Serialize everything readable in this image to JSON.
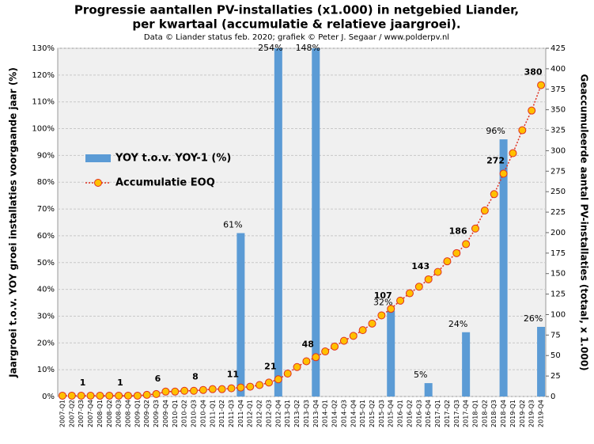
{
  "chart_data": {
    "type": "bar",
    "title": [
      "Progressie aantallen PV-installaties  (x1.000) in netgebied Liander,",
      "per kwartaal (accumulatie  & relatieve jaargroei)."
    ],
    "subtitle": "Data © Liander status feb. 2020; grafiek © Peter J. Segaar / www.polderpv.nl",
    "y_label": "Jaargroei t.o.v. YOY groei installaties voorgaande jaar (%)",
    "y2_label": "Geaccumuleerde aantal PV-installaties  (totaal, x 1.000)",
    "categories": [
      "2007-Q1",
      "2007-Q2",
      "2007-Q3",
      "2007-Q4",
      "2008-Q1",
      "2008-Q2",
      "2008-Q3",
      "2008-Q4",
      "2009-Q1",
      "2009-Q2",
      "2009-Q3",
      "2009-Q4",
      "2010-Q1",
      "2010-Q2",
      "2010-Q3",
      "2010-Q4",
      "2011-Q1",
      "2011-Q2",
      "2011-Q3",
      "2011-Q4",
      "2012-Q1",
      "2012-Q2",
      "2012-Q3",
      "2012-Q4",
      "2013-Q1",
      "2013-Q2",
      "2013-Q3",
      "2013-Q4",
      "2014-Q1",
      "2014-Q2",
      "2014-Q3",
      "2014-Q4",
      "2015-Q1",
      "2015-Q2",
      "2015-Q3",
      "2015-Q4",
      "2016-Q1",
      "2016-Q2",
      "2016-Q3",
      "2016-Q4",
      "2017-Q1",
      "2017-Q2",
      "2017-Q3",
      "2017-Q4",
      "2018-Q1",
      "2018-Q2",
      "2018-Q3",
      "2018-Q4",
      "2019-Q1",
      "2019-Q2",
      "2019-Q3",
      "2019-Q4"
    ],
    "series": [
      {
        "name": "YOY t.o.v. YOY-1 (%)",
        "type": "bar",
        "color": "#5b9bd5",
        "values": [
          null,
          null,
          null,
          null,
          null,
          null,
          null,
          null,
          null,
          null,
          null,
          null,
          null,
          null,
          null,
          null,
          null,
          null,
          null,
          61,
          null,
          null,
          null,
          254,
          null,
          null,
          null,
          148,
          null,
          null,
          null,
          null,
          null,
          null,
          null,
          32,
          null,
          null,
          null,
          5,
          null,
          null,
          null,
          24,
          null,
          null,
          null,
          96,
          null,
          null,
          null,
          26
        ],
        "value_labels": [
          null,
          null,
          null,
          null,
          null,
          null,
          null,
          null,
          null,
          null,
          null,
          null,
          null,
          null,
          null,
          null,
          null,
          null,
          null,
          "61%",
          null,
          null,
          null,
          "254%",
          null,
          null,
          null,
          "148%",
          null,
          null,
          null,
          null,
          null,
          null,
          null,
          "32%",
          null,
          null,
          null,
          "5%",
          null,
          null,
          null,
          "24%",
          null,
          null,
          null,
          "96%",
          null,
          null,
          null,
          "26%"
        ]
      },
      {
        "name": "Accumulatie EOQ",
        "type": "line",
        "axis": "y2",
        "color": "#e03020",
        "marker_color": "#ffc000",
        "values": [
          1,
          1,
          1,
          1,
          1,
          1,
          1,
          1,
          1,
          2,
          3,
          6,
          6,
          7,
          7,
          8,
          9,
          9,
          10,
          11,
          12,
          14,
          17,
          21,
          28,
          36,
          43,
          48,
          55,
          61,
          68,
          74,
          81,
          89,
          99,
          107,
          117,
          126,
          134,
          143,
          152,
          165,
          175,
          186,
          205,
          227,
          247,
          272,
          297,
          325,
          349,
          380
        ],
        "value_labels": [
          null,
          null,
          null,
          "1",
          null,
          null,
          null,
          "1",
          null,
          null,
          null,
          "6",
          null,
          null,
          null,
          "8",
          null,
          null,
          null,
          "11",
          null,
          null,
          null,
          "21",
          null,
          null,
          null,
          "48",
          null,
          null,
          null,
          null,
          null,
          null,
          null,
          "107",
          null,
          null,
          null,
          "143",
          null,
          null,
          null,
          "186",
          null,
          null,
          null,
          "272",
          null,
          null,
          null,
          "380"
        ]
      }
    ],
    "ylim": [
      0,
      130
    ],
    "yticks": [
      {
        "value": 0,
        "label": "0%"
      },
      {
        "value": 10,
        "label": "10%"
      },
      {
        "value": 20,
        "label": "20%"
      },
      {
        "value": 30,
        "label": "30%"
      },
      {
        "value": 40,
        "label": "40%"
      },
      {
        "value": 50,
        "label": "50%"
      },
      {
        "value": 60,
        "label": "60%"
      },
      {
        "value": 70,
        "label": "70%"
      },
      {
        "value": 80,
        "label": "80%"
      },
      {
        "value": 90,
        "label": "90%"
      },
      {
        "value": 100,
        "label": "100%"
      },
      {
        "value": 110,
        "label": "110%"
      },
      {
        "value": 120,
        "label": "120%"
      },
      {
        "value": 130,
        "label": "130%"
      }
    ],
    "y2lim": [
      0,
      425
    ],
    "y2ticks": [
      0,
      25,
      50,
      75,
      100,
      125,
      150,
      175,
      200,
      225,
      250,
      275,
      300,
      325,
      350,
      375,
      400,
      425
    ],
    "grid": true,
    "legend": "left"
  }
}
